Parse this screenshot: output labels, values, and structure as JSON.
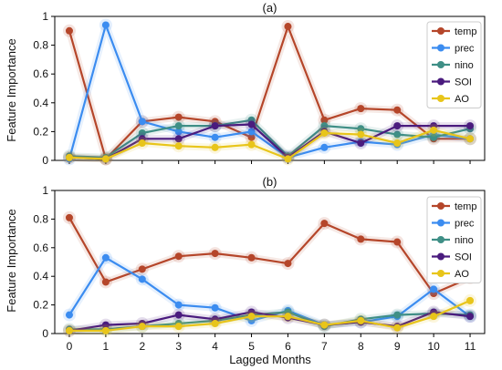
{
  "chart_data": [
    {
      "type": "line",
      "title": "(a)",
      "xlabel": "",
      "ylabel": "Feature Importance",
      "x": [
        0,
        1,
        2,
        3,
        4,
        5,
        6,
        7,
        8,
        9,
        10,
        11
      ],
      "xlim": [
        -0.4,
        11.4
      ],
      "ylim": [
        0,
        1
      ],
      "yticks": [
        0,
        0.2,
        0.4,
        0.6,
        0.8,
        1
      ],
      "ytick_labels": [
        "0",
        "0.2",
        "0.4",
        "0.6",
        "0.8",
        "1"
      ],
      "grid": false,
      "legend_position": "top-right",
      "series": [
        {
          "name": "temp",
          "color": "#b5462a",
          "values": [
            0.9,
            0.01,
            0.27,
            0.3,
            0.27,
            0.16,
            0.93,
            0.28,
            0.36,
            0.35,
            0.15,
            0.15
          ]
        },
        {
          "name": "prec",
          "color": "#3b8cf0",
          "values": [
            0.01,
            0.94,
            0.27,
            0.2,
            0.16,
            0.2,
            0.02,
            0.09,
            0.13,
            0.11,
            0.18,
            0.15
          ]
        },
        {
          "name": "nino",
          "color": "#3f8f86",
          "values": [
            0.03,
            0.02,
            0.19,
            0.24,
            0.24,
            0.28,
            0.03,
            0.24,
            0.22,
            0.18,
            0.16,
            0.22
          ]
        },
        {
          "name": "SOI",
          "color": "#4a1b7e",
          "values": [
            0.02,
            0.01,
            0.15,
            0.15,
            0.24,
            0.25,
            0.02,
            0.2,
            0.12,
            0.24,
            0.24,
            0.24
          ]
        },
        {
          "name": "AO",
          "color": "#e8c51a",
          "values": [
            0.02,
            0.01,
            0.12,
            0.1,
            0.09,
            0.11,
            0.01,
            0.19,
            0.18,
            0.12,
            0.21,
            0.15
          ]
        }
      ]
    },
    {
      "type": "line",
      "title": "(b)",
      "xlabel": "Lagged Months",
      "ylabel": "Feature Importance",
      "x": [
        0,
        1,
        2,
        3,
        4,
        5,
        6,
        7,
        8,
        9,
        10,
        11
      ],
      "xlim": [
        -0.4,
        11.4
      ],
      "ylim": [
        0,
        1
      ],
      "yticks": [
        0,
        0.2,
        0.4,
        0.6,
        0.8,
        1
      ],
      "ytick_labels": [
        "0",
        "0.2",
        "0.4",
        "0.6",
        "0.8",
        "1"
      ],
      "xticks": [
        0,
        1,
        2,
        3,
        4,
        5,
        6,
        7,
        8,
        9,
        10,
        11
      ],
      "xtick_labels": [
        "0",
        "1",
        "2",
        "3",
        "4",
        "5",
        "6",
        "7",
        "8",
        "9",
        "10",
        "11"
      ],
      "grid": false,
      "legend_position": "top-right",
      "series": [
        {
          "name": "temp",
          "color": "#b5462a",
          "values": [
            0.81,
            0.36,
            0.45,
            0.54,
            0.56,
            0.53,
            0.49,
            0.77,
            0.66,
            0.64,
            0.28,
            0.39
          ]
        },
        {
          "name": "prec",
          "color": "#3b8cf0",
          "values": [
            0.13,
            0.53,
            0.38,
            0.2,
            0.18,
            0.09,
            0.16,
            0.06,
            0.08,
            0.12,
            0.31,
            0.12
          ]
        },
        {
          "name": "nino",
          "color": "#3f8f86",
          "values": [
            0.03,
            0.03,
            0.05,
            0.07,
            0.09,
            0.13,
            0.15,
            0.05,
            0.1,
            0.13,
            0.14,
            0.13
          ]
        },
        {
          "name": "SOI",
          "color": "#4a1b7e",
          "values": [
            0.02,
            0.06,
            0.07,
            0.13,
            0.1,
            0.15,
            0.11,
            0.06,
            0.08,
            0.05,
            0.15,
            0.12
          ]
        },
        {
          "name": "AO",
          "color": "#e8c51a",
          "values": [
            0.02,
            0.02,
            0.05,
            0.05,
            0.07,
            0.12,
            0.12,
            0.06,
            0.09,
            0.04,
            0.12,
            0.23
          ]
        }
      ]
    }
  ]
}
